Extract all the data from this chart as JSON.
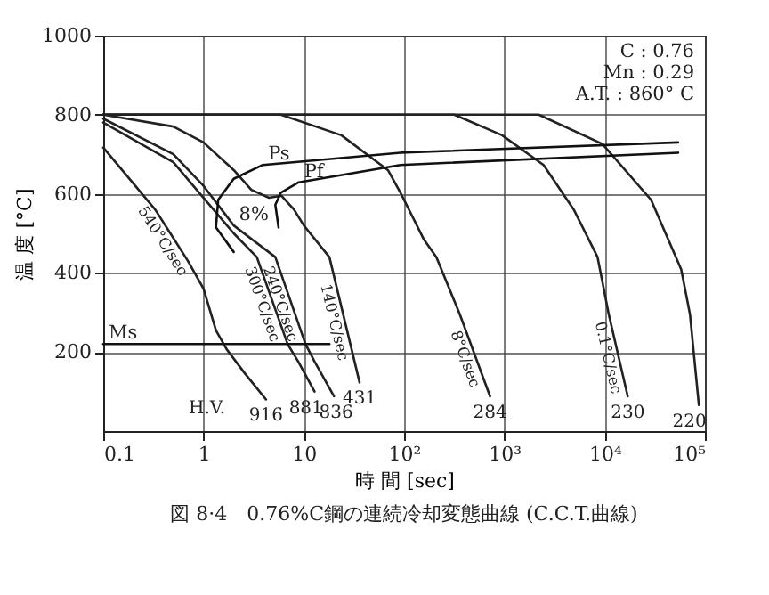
{
  "chart_data": {
    "type": "line",
    "title": "図 8·4　0.76%C鋼の連続冷却変態曲線 (C.C.T.曲線)",
    "xlabel": "時 間 [sec]",
    "ylabel": "温 度 [°C]",
    "log": "x",
    "grid": true,
    "xlim": [
      0.1,
      100000
    ],
    "ylim": [
      0,
      1000
    ],
    "xticks": [
      0.1,
      1,
      10,
      {
        "value": 100,
        "label": "10²"
      },
      {
        "value": 1000,
        "label": "10³"
      },
      {
        "value": 10000,
        "label": "10⁴"
      },
      {
        "value": 100000,
        "label": "10⁵"
      }
    ],
    "yticks": [
      200,
      400,
      600,
      800,
      1000
    ],
    "series": [
      {
        "name": "540°C/sec",
        "color": "#222222",
        "x": [
          0.1,
          0.33,
          0.7,
          1,
          1.33,
          1.7,
          2.6,
          4.2
        ],
        "values": [
          717,
          560,
          430,
          360,
          255,
          207,
          145,
          80
        ]
      },
      {
        "name": "300°C/sec",
        "color": "#222222",
        "x": [
          0.1,
          0.5,
          1,
          2,
          3.4,
          6.9,
          8.8,
          12.8
        ],
        "values": [
          780,
          680,
          590,
          500,
          440,
          220,
          176,
          100
        ]
      },
      {
        "name": "240°C/sec",
        "color": "#222222",
        "x": [
          0.1,
          0.5,
          1,
          2,
          5.2,
          10.4,
          12.8,
          20
        ],
        "values": [
          790,
          700,
          620,
          520,
          440,
          220,
          176,
          88
        ]
      },
      {
        "name": "140°C/sec",
        "color": "#222222",
        "x": [
          0.1,
          0.5,
          1,
          2,
          3,
          4.5,
          6,
          8,
          10,
          18,
          36
        ],
        "values": [
          800,
          770,
          730,
          660,
          610,
          590,
          595,
          560,
          520,
          440,
          123
        ]
      },
      {
        "name": "8°C/sec",
        "color": "#222222",
        "x": [
          0.1,
          5.9,
          23.7,
          69,
          92,
          158,
          210,
          360,
          720
        ],
        "values": [
          800,
          800,
          748,
          660,
          603,
          484,
          440,
          295,
          88
        ]
      },
      {
        "name": "0.1°C/sec",
        "color": "#222222",
        "x": [
          0.1,
          316,
          950,
          2460,
          4950,
          8500,
          11000,
          17000
        ],
        "values": [
          800,
          800,
          748,
          673,
          559,
          440,
          295,
          88
        ]
      },
      {
        "color": "#222222",
        "x": [
          0.1,
          2200,
          9500,
          29000,
          58000,
          71000,
          87000
        ],
        "values": [
          800,
          800,
          726,
          585,
          409,
          295,
          66
        ]
      },
      {
        "color": "#111111",
        "x": [
          2,
          1.33,
          1.4,
          2,
          3.9,
          92,
          54000
        ],
        "values": [
          453,
          515,
          585,
          638,
          673,
          704,
          730
        ]
      },
      {
        "color": "#111111",
        "x": [
          5.6,
          5.2,
          5.9,
          8.9,
          92,
          54000
        ],
        "values": [
          515,
          572,
          603,
          629,
          673,
          704
        ]
      },
      {
        "color": "#111111",
        "x": [
          0.1,
          18
        ],
        "values": [
          220,
          220
        ]
      }
    ],
    "annotations": [
      "C : 0.76",
      "Mn : 0.29",
      "A.T. : 860° C",
      {
        "text": "Ps",
        "x": 3.9,
        "y": 673
      },
      {
        "text": "Pf",
        "x": 8.9,
        "y": 629
      },
      {
        "text": "Ms",
        "x": 0.1,
        "y": 220
      },
      {
        "text": "8%",
        "x": 2,
        "y": 520
      },
      {
        "text": "916",
        "x": 4.2,
        "y": 80
      },
      {
        "text": "881",
        "x": 10.5,
        "y": 100
      },
      {
        "text": "836",
        "x": 21,
        "y": 88
      },
      {
        "text": "431",
        "x": 36,
        "y": 123
      },
      {
        "text": "284",
        "x": 720,
        "y": 88
      },
      {
        "text": "230",
        "x": 17000,
        "y": 88
      },
      {
        "text": "220",
        "x": 70000,
        "y": 66
      },
      "H.V."
    ]
  }
}
